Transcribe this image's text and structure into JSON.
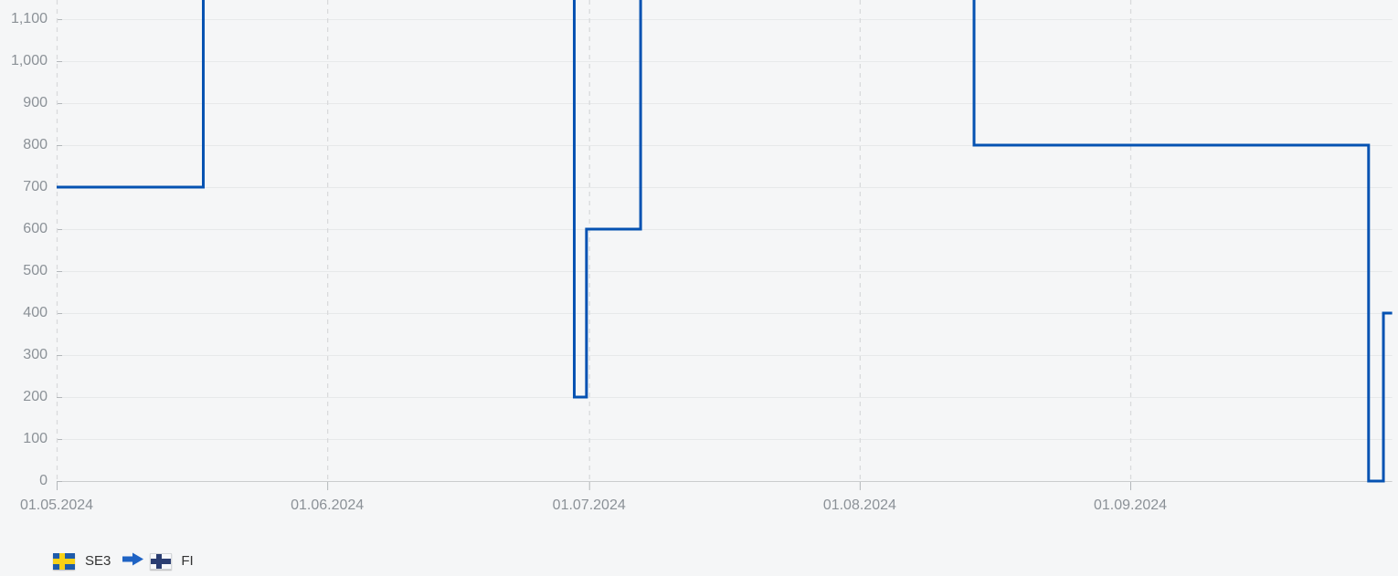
{
  "page": {
    "background": "#f5f6f7"
  },
  "legend": {
    "from_label": "SE3",
    "to_label": "FI",
    "from_flag": "sweden-flag-icon",
    "to_flag": "finland-flag-icon",
    "arrow": "right-arrow-icon"
  },
  "colors": {
    "line": "#0552b2",
    "gridline": "#e7e9ea",
    "zero_line": "#caccce",
    "month_dash": "#d9dadc",
    "tick": "#b3b7ba",
    "axis_label": "#8b9197",
    "legend_text": "#333333",
    "arrow_blue": "#1f63c4",
    "sweden_blue": "#1e5cab",
    "sweden_yellow": "#f7d117",
    "finland_white": "#f8f9fb",
    "finland_blue": "#2b3e72"
  },
  "chart_data": {
    "type": "line",
    "line_style": "step",
    "title": "",
    "xlabel": "",
    "ylabel": "",
    "grid": true,
    "legend_position": "bottom-left",
    "series": [
      {
        "name": "SE3 → FI",
        "segments": [
          {
            "from_date": "01.05.2024",
            "to_date": "18.05.2024",
            "from_day": 0,
            "to_day": 16.8,
            "value": 700
          },
          {
            "from_date": "18.05.2024",
            "to_date": "29.06.2024",
            "from_day": 16.8,
            "to_day": 59.3,
            "value": 1200,
            "clipped_above_view": true
          },
          {
            "from_date": "29.06.2024",
            "to_date": "30.06.2024",
            "from_day": 59.3,
            "to_day": 60.7,
            "value": 200
          },
          {
            "from_date": "30.06.2024",
            "to_date": "07.07.2024",
            "from_day": 60.7,
            "to_day": 66.9,
            "value": 600
          },
          {
            "from_date": "07.07.2024",
            "to_date": "14.08.2024",
            "from_day": 66.9,
            "to_day": 105.1,
            "value": 1200,
            "clipped_above_view": true
          },
          {
            "from_date": "14.08.2024",
            "to_date": "28.09.2024",
            "from_day": 105.1,
            "to_day": 150.3,
            "value": 800
          },
          {
            "from_date": "28.09.2024",
            "to_date": "30.09.2024",
            "from_day": 150.3,
            "to_day": 152.0,
            "value": 0
          },
          {
            "from_date": "30.09.2024",
            "to_date": "01.10.2024",
            "from_day": 152.0,
            "to_day": 153.0,
            "value": 400
          }
        ]
      }
    ],
    "y_axis": {
      "tick_values": [
        0,
        100,
        200,
        300,
        400,
        500,
        600,
        700,
        800,
        900,
        1000,
        1100
      ],
      "tick_labels": [
        "0",
        "100",
        "200",
        "300",
        "400",
        "500",
        "600",
        "700",
        "800",
        "900",
        "1,000",
        "1,100"
      ],
      "visible_range_top": 1148
    },
    "x_axis": {
      "tick_labels": [
        "01.05.2024",
        "01.06.2024",
        "01.07.2024",
        "01.08.2024",
        "01.09.2024"
      ],
      "month_start_days": [
        0,
        31,
        61,
        92,
        123
      ],
      "total_days": 153,
      "range": [
        "01.05.2024",
        "01.10.2024"
      ]
    }
  }
}
